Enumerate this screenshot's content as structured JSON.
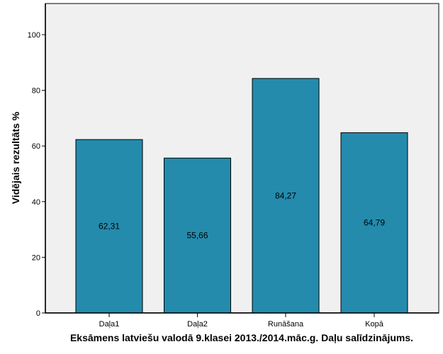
{
  "chart_data": {
    "type": "bar",
    "title": "Eksāmens latviešu valodā 9.klasei 2013./2014.māc.g. Daļu salīdzinājums.",
    "xlabel": "Eksāmens latviešu valodā 9.klasei 2013./2014.māc.g. Daļu salīdzinājums.",
    "ylabel": "Vidējais rezultāts %",
    "categories": [
      "Daļa1",
      "Daļa2",
      "Runāšana",
      "Kopā"
    ],
    "values": [
      62.31,
      55.66,
      84.27,
      64.79
    ],
    "value_labels": [
      "62,31",
      "55,66",
      "84,27",
      "64,79"
    ],
    "ylim": [
      0,
      111.2
    ],
    "yticks": [
      0,
      20,
      40,
      60,
      80,
      100
    ],
    "ytick_labels": [
      "0",
      "20",
      "40",
      "60",
      "80",
      "100"
    ],
    "grid": false,
    "colors": {
      "bar": "#248BAD",
      "plot_bg": "#F0F0F0",
      "edge": "#000000"
    }
  }
}
